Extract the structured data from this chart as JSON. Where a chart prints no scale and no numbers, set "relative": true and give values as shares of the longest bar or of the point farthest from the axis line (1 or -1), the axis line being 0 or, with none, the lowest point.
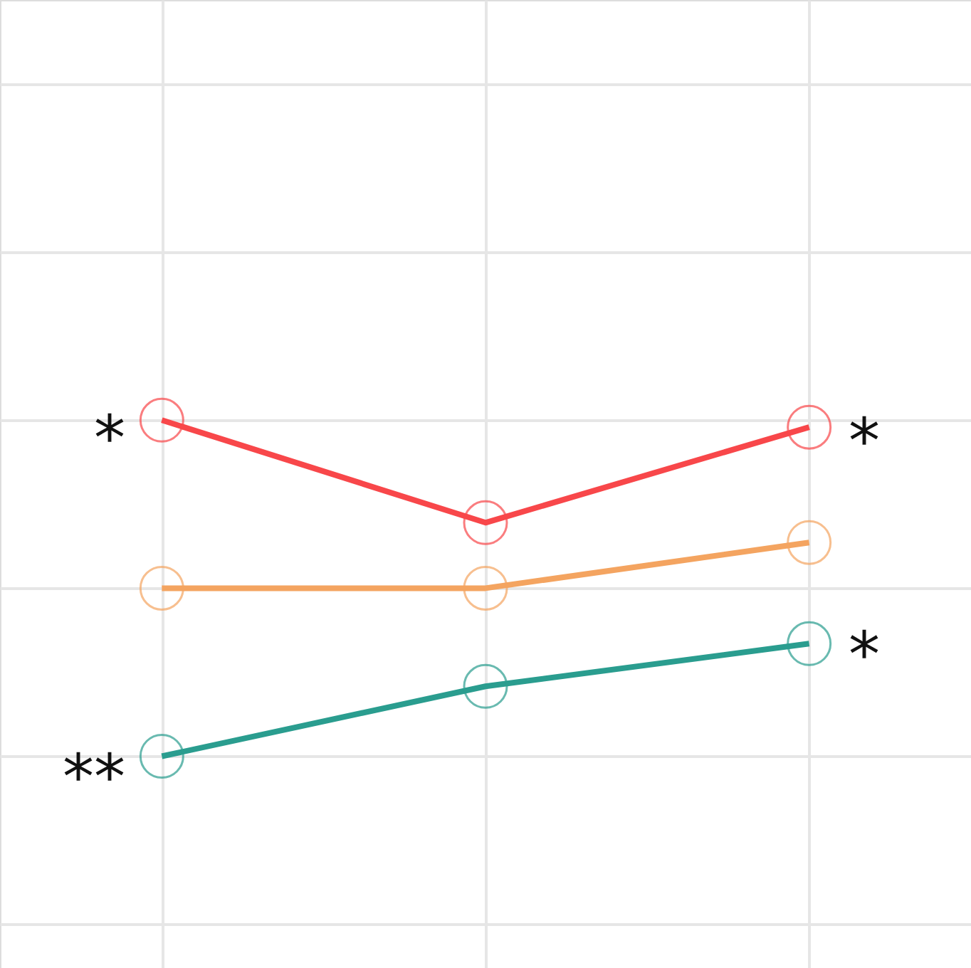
{
  "chart_data": {
    "type": "line",
    "relative": true,
    "categories": [
      null,
      null,
      null
    ],
    "grid": true,
    "legend": false,
    "marker": "circle",
    "line_style": "solid",
    "series": [
      {
        "color": "#f8474a",
        "values": [
          1.0,
          0.695,
          0.979
        ]
      },
      {
        "color": "#f4a460",
        "values": [
          0.5,
          0.5,
          0.636
        ]
      },
      {
        "color": "#2a9d8f",
        "values": [
          0.0,
          0.208,
          0.335
        ]
      }
    ],
    "annotations": [
      "*",
      "*",
      "**",
      "*"
    ]
  }
}
